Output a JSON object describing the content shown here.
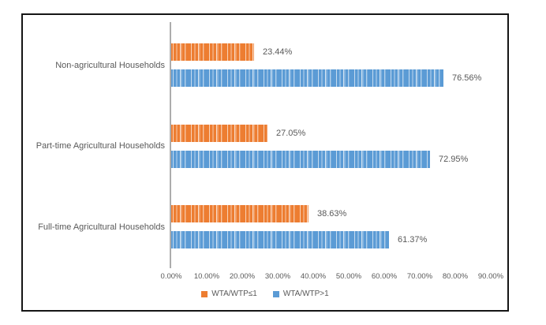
{
  "chart_data": {
    "type": "bar",
    "orientation": "horizontal",
    "title": "",
    "categories": [
      "Non-agricultural Households",
      "Part-time Agricultural Households",
      "Full-time Agricultural Households"
    ],
    "series": [
      {
        "name": "WTA/WTP≤1",
        "color": "#ED7D31",
        "values": [
          23.44,
          27.05,
          38.63
        ],
        "data_labels": [
          "23.44%",
          "27.05%",
          "38.63%"
        ]
      },
      {
        "name": "WTA/WTP>1",
        "color": "#5B9BD5",
        "values": [
          76.56,
          72.95,
          61.37
        ],
        "data_labels": [
          "76.56%",
          "72.95%",
          "61.37%"
        ]
      }
    ],
    "x_axis": {
      "min": 0,
      "max": 90,
      "tick_step": 10,
      "tick_labels": [
        "0.00%",
        "10.00%",
        "20.00%",
        "30.00%",
        "40.00%",
        "50.00%",
        "60.00%",
        "70.00%",
        "80.00%",
        "90.00%"
      ]
    },
    "gridlines": false,
    "legend_position": "bottom",
    "legend": [
      {
        "label": "WTA/WTP≤1",
        "color": "#ED7D31"
      },
      {
        "label": "WTA/WTP>1",
        "color": "#5B9BD5"
      }
    ]
  },
  "colors": {
    "frame_border": "#151515",
    "axis_line": "#adadad",
    "text": "#595959",
    "background": "#ffffff"
  }
}
